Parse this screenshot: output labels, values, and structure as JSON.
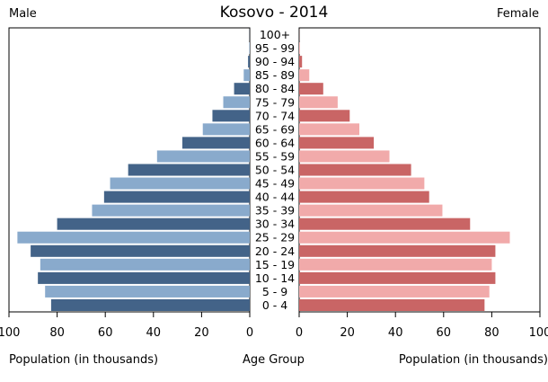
{
  "chart_data": {
    "type": "bar",
    "title": "Kosovo - 2014",
    "left_header": "Male",
    "right_header": "Female",
    "left_xlabel": "Population (in thousands)",
    "center_label": "Age Group",
    "right_xlabel": "Population (in thousands)",
    "xlim": [
      0,
      100
    ],
    "left_ticks": [
      "100",
      "80",
      "60",
      "40",
      "20",
      "0"
    ],
    "right_ticks": [
      "0",
      "20",
      "40",
      "60",
      "80",
      "100"
    ],
    "tick_values": [
      0,
      20,
      40,
      60,
      80,
      100
    ],
    "categories": [
      "0 - 4",
      "5 - 9",
      "10 - 14",
      "15 - 19",
      "20 - 24",
      "25 - 29",
      "30 - 34",
      "35 - 39",
      "40 - 44",
      "45 - 49",
      "50 - 54",
      "55 - 59",
      "60 - 64",
      "65 - 69",
      "70 - 74",
      "75 - 79",
      "80 - 84",
      "85 - 89",
      "90 - 94",
      "95 - 99",
      "100+"
    ],
    "series": [
      {
        "name": "Male",
        "values": [
          82.5,
          85,
          88,
          87,
          91,
          96.5,
          80,
          65.5,
          60.5,
          58,
          50.5,
          38.5,
          28,
          19.5,
          15.5,
          11,
          6.5,
          2.5,
          0.7,
          0.2,
          0.05
        ]
      },
      {
        "name": "Female",
        "values": [
          77,
          79,
          81.5,
          80,
          81.5,
          87.5,
          71,
          59.5,
          54,
          52,
          46.5,
          37.5,
          31,
          25,
          21,
          16,
          10,
          4.2,
          1.2,
          0.3,
          0.05
        ]
      }
    ],
    "colors": {
      "male_dark": "#436388",
      "male_light": "#89aacc",
      "female_dark": "#c96565",
      "female_light": "#f1aaaa",
      "frame": "#000000"
    },
    "grid": false
  }
}
